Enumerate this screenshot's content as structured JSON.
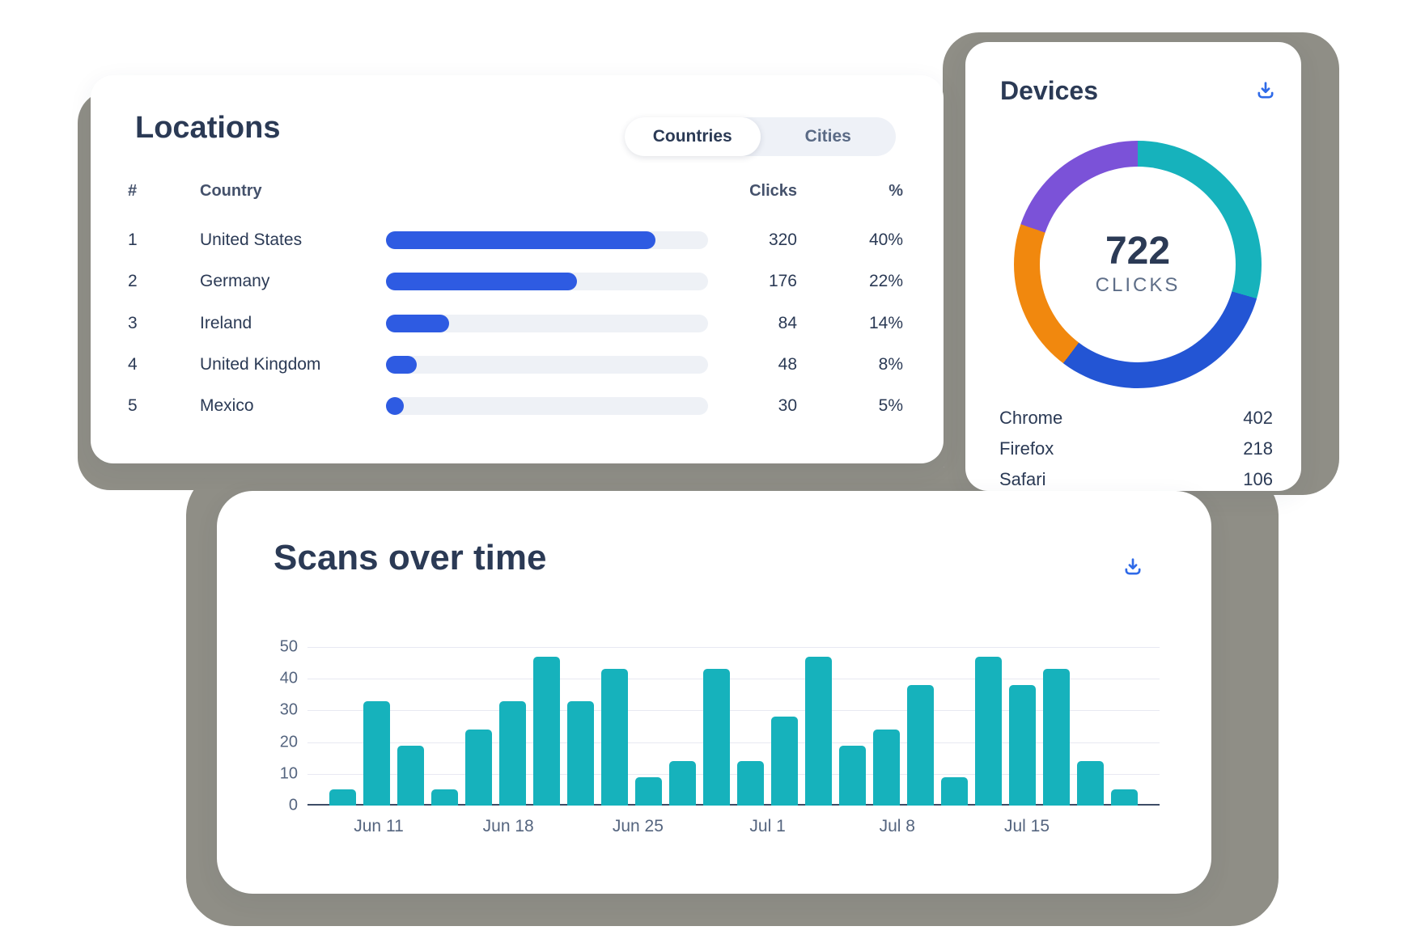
{
  "locations_card": {
    "title": "Locations",
    "toggle": {
      "options": [
        "Countries",
        "Cities"
      ],
      "selected": "Countries"
    },
    "table": {
      "headers": {
        "rank": "#",
        "country": "Country",
        "clicks": "Clicks",
        "percent": "%"
      },
      "rows": [
        {
          "rank": "1",
          "country": "United States",
          "clicks": "320",
          "percent": "40%",
          "bar_pct": 83.7
        },
        {
          "rank": "2",
          "country": "Germany",
          "clicks": "176",
          "percent": "22%",
          "bar_pct": 59.3
        },
        {
          "rank": "3",
          "country": "Ireland",
          "clicks": "84",
          "percent": "14%",
          "bar_pct": 19.6
        },
        {
          "rank": "4",
          "country": "United Kingdom",
          "clicks": "48",
          "percent": "8%",
          "bar_pct": 9.5
        },
        {
          "rank": "5",
          "country": "Mexico",
          "clicks": "30",
          "percent": "5%",
          "bar_pct": 5.5
        }
      ],
      "bar_color": "#2e5be2",
      "track_color": "#eef1f6"
    }
  },
  "devices_card": {
    "title": "Devices",
    "icons": {
      "download": "tray-arrow-down"
    },
    "donut": {
      "total_value": "722",
      "total_label": "CLICKS",
      "segments": [
        {
          "name": "teal",
          "color": "#16b2bc",
          "start_deg": 0,
          "end_deg": 106
        },
        {
          "name": "blue",
          "color": "#2355d4",
          "start_deg": 106,
          "end_deg": 217
        },
        {
          "name": "orange",
          "color": "#f1880e",
          "start_deg": 217,
          "end_deg": 289
        },
        {
          "name": "purple",
          "color": "#7b52d8",
          "start_deg": 289,
          "end_deg": 360
        }
      ]
    },
    "list": [
      {
        "label": "Chrome",
        "value": "402"
      },
      {
        "label": "Firefox",
        "value": "218"
      },
      {
        "label": "Safari",
        "value": "106"
      }
    ]
  },
  "scans_card": {
    "title": "Scans over time",
    "icons": {
      "download": "tray-arrow-down"
    }
  },
  "chart_data": [
    {
      "type": "bar",
      "title": "Scans over time",
      "values": [
        5,
        33,
        19,
        5,
        24,
        33,
        47,
        33,
        43,
        9,
        14,
        43,
        14,
        28,
        47,
        19,
        24,
        38,
        9,
        47,
        38,
        43,
        14,
        5
      ],
      "x_tick_labels": [
        "Jun 11",
        "Jun 18",
        "Jun 25",
        "Jul 1",
        "Jul 8",
        "Jul 15"
      ],
      "yticks": [
        0,
        10,
        20,
        30,
        40,
        50
      ],
      "ylim": [
        0,
        50
      ],
      "grid": true,
      "bar_color": "#16b2bc"
    },
    {
      "type": "pie",
      "subtype": "donut",
      "title": "Devices",
      "center_value": 722,
      "center_label": "CLICKS",
      "legend": [
        {
          "label": "Chrome",
          "value": 402
        },
        {
          "label": "Firefox",
          "value": 218
        },
        {
          "label": "Safari",
          "value": 106
        }
      ],
      "segments_deg": [
        {
          "color": "#16b2bc",
          "span": 106
        },
        {
          "color": "#2355d4",
          "span": 111
        },
        {
          "color": "#f1880e",
          "span": 72
        },
        {
          "color": "#7b52d8",
          "span": 71
        }
      ]
    },
    {
      "type": "table",
      "title": "Locations",
      "columns": [
        "#",
        "Country",
        "Clicks",
        "%"
      ],
      "rows": [
        [
          "1",
          "United States",
          320,
          "40%"
        ],
        [
          "2",
          "Germany",
          176,
          "22%"
        ],
        [
          "3",
          "Ireland",
          84,
          "14%"
        ],
        [
          "4",
          "United Kingdom",
          48,
          "8%"
        ],
        [
          "5",
          "Mexico",
          30,
          "5%"
        ]
      ]
    }
  ],
  "colors": {
    "backdrop_gray": "#8f8e86",
    "navy_text": "#2b3a55",
    "slate_text": "#55657f",
    "bar_blue": "#2e5be2",
    "teal": "#16b2bc",
    "orange": "#f1880e",
    "purple": "#7b52d8",
    "donut_blue": "#2355d4",
    "icon_blue": "#2f6ae8"
  }
}
